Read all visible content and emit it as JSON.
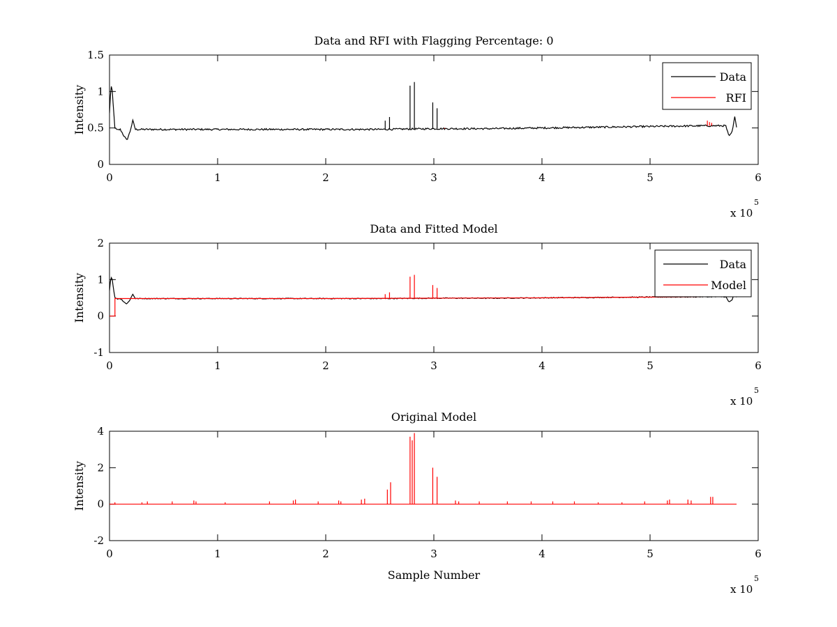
{
  "figure": {
    "background": "#ffffff"
  },
  "colors": {
    "data": "#000000",
    "rfi": "#ff0000",
    "model": "#ff0000",
    "axis": "#000000"
  },
  "chart_data": [
    {
      "type": "line",
      "title": "Data and RFI with Flagging Percentage: 0",
      "xlabel": "",
      "ylabel": "Intensity",
      "xlim": [
        0,
        6
      ],
      "ylim": [
        0,
        1.5
      ],
      "x_ticks": [
        0,
        1,
        2,
        3,
        4,
        5,
        6
      ],
      "y_ticks": [
        0,
        0.5,
        1,
        1.5
      ],
      "x_tick_labels": [
        "0",
        "1",
        "2",
        "3",
        "4",
        "5",
        "6"
      ],
      "y_tick_labels": [
        "0",
        "0.5",
        "1",
        "1.5"
      ],
      "x_multiplier": {
        "base": "x 10",
        "power": "5"
      },
      "legend": {
        "position": "top-right",
        "entries": [
          {
            "label": "Data",
            "color": "#000000"
          },
          {
            "label": "RFI",
            "color": "#ff0000"
          }
        ]
      },
      "baseline_series": {
        "name": "Data",
        "color": "#000000",
        "x": [
          0,
          0.01,
          0.02,
          0.035,
          0.05,
          0.07,
          0.1,
          0.13,
          0.16,
          0.19,
          0.215,
          0.24,
          0.5,
          1.0,
          1.5,
          2.0,
          2.5,
          3.0,
          3.5,
          4.0,
          4.5,
          5.0,
          5.5,
          5.7,
          5.73,
          5.76,
          5.785,
          5.8
        ],
        "y": [
          0.7,
          1.0,
          1.1,
          0.8,
          0.5,
          0.47,
          0.48,
          0.4,
          0.33,
          0.45,
          0.6,
          0.48,
          0.48,
          0.48,
          0.48,
          0.48,
          0.48,
          0.49,
          0.49,
          0.5,
          0.51,
          0.52,
          0.53,
          0.53,
          0.38,
          0.45,
          0.66,
          0.52
        ],
        "noise": 0.012
      },
      "spike_series": [
        {
          "name": "Data",
          "color": "#000000",
          "x": [
            2.55,
            2.59,
            2.78,
            2.82,
            2.99,
            3.03
          ],
          "y": [
            0.6,
            0.65,
            1.08,
            1.13,
            0.85,
            0.77
          ]
        },
        {
          "name": "RFI",
          "color": "#ff0000",
          "x": [
            3.1,
            5.53,
            5.55,
            5.57
          ],
          "y": [
            0.5,
            0.6,
            0.58,
            0.57
          ]
        }
      ]
    },
    {
      "type": "line",
      "title": "Data and Fitted Model",
      "xlabel": "",
      "ylabel": "Intensity",
      "xlim": [
        0,
        6
      ],
      "ylim": [
        -1,
        2
      ],
      "x_ticks": [
        0,
        1,
        2,
        3,
        4,
        5,
        6
      ],
      "y_ticks": [
        -1,
        0,
        1,
        2
      ],
      "x_tick_labels": [
        "0",
        "1",
        "2",
        "3",
        "4",
        "5",
        "6"
      ],
      "y_tick_labels": [
        "-1",
        "0",
        "1",
        "2"
      ],
      "x_multiplier": {
        "base": "x 10",
        "power": "5"
      },
      "legend": {
        "position": "top-right",
        "entries": [
          {
            "label": "Data",
            "color": "#000000"
          },
          {
            "label": "Model",
            "color": "#ff0000"
          }
        ]
      },
      "baseline_series": {
        "name": "Data",
        "color": "#000000",
        "x": [
          0,
          0.01,
          0.02,
          0.035,
          0.05,
          0.07,
          0.1,
          0.13,
          0.16,
          0.19,
          0.215,
          0.24,
          0.5,
          1.0,
          1.5,
          2.0,
          2.5,
          3.0,
          3.5,
          4.0,
          4.5,
          5.0,
          5.5,
          5.7,
          5.73,
          5.76,
          5.785,
          5.8
        ],
        "y": [
          0.7,
          1.0,
          1.1,
          0.8,
          0.5,
          0.47,
          0.48,
          0.4,
          0.33,
          0.45,
          0.6,
          0.48,
          0.48,
          0.48,
          0.48,
          0.48,
          0.48,
          0.49,
          0.49,
          0.5,
          0.51,
          0.52,
          0.53,
          0.53,
          0.38,
          0.45,
          0.66,
          0.52
        ],
        "noise": 0.012
      },
      "model_series": {
        "name": "Model",
        "color": "#ff0000",
        "x": [
          0,
          0.05,
          0.05,
          0.5,
          1.0,
          2.0,
          3.0,
          4.0,
          5.0,
          5.5,
          5.8
        ],
        "y": [
          0.0,
          0.0,
          0.48,
          0.48,
          0.48,
          0.48,
          0.49,
          0.5,
          0.52,
          0.53,
          0.53
        ]
      },
      "spike_series": [
        {
          "name": "Model",
          "color": "#ff0000",
          "x": [
            2.55,
            2.59,
            2.78,
            2.82,
            2.99,
            3.03
          ],
          "y": [
            0.6,
            0.65,
            1.08,
            1.13,
            0.85,
            0.77
          ]
        }
      ]
    },
    {
      "type": "line",
      "title": "Original Model",
      "xlabel": "Sample Number",
      "ylabel": "Intensity",
      "xlim": [
        0,
        6
      ],
      "ylim": [
        -2,
        4
      ],
      "x_ticks": [
        0,
        1,
        2,
        3,
        4,
        5,
        6
      ],
      "y_ticks": [
        -2,
        0,
        2,
        4
      ],
      "x_tick_labels": [
        "0",
        "1",
        "2",
        "3",
        "4",
        "5",
        "6"
      ],
      "y_tick_labels": [
        "-2",
        "0",
        "2",
        "4"
      ],
      "x_multiplier": {
        "base": "x 10",
        "power": "5"
      },
      "legend": null,
      "baseline_series": {
        "name": "Model",
        "color": "#ff0000",
        "x": [
          0,
          5.8
        ],
        "y": [
          0,
          0
        ],
        "noise": 0
      },
      "spike_series": [
        {
          "name": "Model",
          "color": "#ff0000",
          "x": [
            0.05,
            0.3,
            0.35,
            0.58,
            0.78,
            0.8,
            1.07,
            1.48,
            1.7,
            1.72,
            1.93,
            2.12,
            2.14,
            2.33,
            2.36,
            2.57,
            2.6,
            2.78,
            2.8,
            2.82,
            2.99,
            3.03,
            3.2,
            3.23,
            3.42,
            3.68,
            3.9,
            4.1,
            4.3,
            4.52,
            4.74,
            4.95,
            5.16,
            5.18,
            5.35,
            5.38,
            5.56,
            5.58
          ],
          "y": [
            0.1,
            0.1,
            0.15,
            0.15,
            0.2,
            0.15,
            0.1,
            0.15,
            0.2,
            0.25,
            0.15,
            0.2,
            0.15,
            0.25,
            0.3,
            0.8,
            1.2,
            3.7,
            3.5,
            3.9,
            2.0,
            1.5,
            0.2,
            0.15,
            0.15,
            0.15,
            0.15,
            0.15,
            0.15,
            0.1,
            0.1,
            0.15,
            0.2,
            0.25,
            0.25,
            0.2,
            0.4,
            0.4
          ]
        }
      ]
    }
  ]
}
